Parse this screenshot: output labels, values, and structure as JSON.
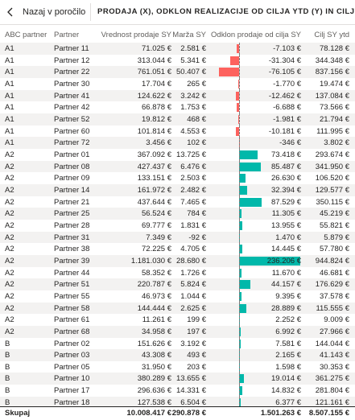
{
  "header": {
    "back": "Nazaj v poročilo",
    "title": "PRODAJA (X), ODKLON REALIZACIJE OD CILJA YTD (Y) IN CILJ PRO"
  },
  "table": {
    "bar_colors": {
      "negative": "#fd625e",
      "positive": "#01b8aa"
    },
    "columns": [
      "ABC partner",
      "Partner",
      "Vrednost prodaje SY",
      "Marža SY",
      "Odklon prodaje od cilja SY",
      "Cilj SY ytd"
    ],
    "rows": [
      [
        "A1",
        "Partner 11",
        "71.025 €",
        "2.581 €",
        {
          "value": -7103,
          "label": "-7.103 €"
        },
        "78.128 €"
      ],
      [
        "A1",
        "Partner 12",
        "313.044 €",
        "5.341 €",
        {
          "value": -31304,
          "label": "-31.304 €"
        },
        "344.348 €"
      ],
      [
        "A1",
        "Partner 22",
        "761.051 €",
        "50.407 €",
        {
          "value": -76105,
          "label": "-76.105 €"
        },
        "837.156 €"
      ],
      [
        "A1",
        "Partner 30",
        "17.704 €",
        "265 €",
        {
          "value": -1770,
          "label": "-1.770 €"
        },
        "19.474 €"
      ],
      [
        "A1",
        "Partner 41",
        "124.622 €",
        "3.242 €",
        {
          "value": -12462,
          "label": "-12.462 €"
        },
        "137.084 €"
      ],
      [
        "A1",
        "Partner 42",
        "66.878 €",
        "1.753 €",
        {
          "value": -6688,
          "label": "-6.688 €"
        },
        "73.566 €"
      ],
      [
        "A1",
        "Partner 52",
        "19.812 €",
        "468 €",
        {
          "value": -1981,
          "label": "-1.981 €"
        },
        "21.794 €"
      ],
      [
        "A1",
        "Partner 60",
        "101.814 €",
        "4.553 €",
        {
          "value": -10181,
          "label": "-10.181 €"
        },
        "111.995 €"
      ],
      [
        "A1",
        "Partner 72",
        "3.456 €",
        "102 €",
        {
          "value": -346,
          "label": "-346 €"
        },
        "3.802 €"
      ],
      [
        "A2",
        "Partner 01",
        "367.092 €",
        "13.725 €",
        {
          "value": 73418,
          "label": "73.418 €"
        },
        "293.674 €"
      ],
      [
        "A2",
        "Partner 08",
        "427.437 €",
        "6.476 €",
        {
          "value": 85487,
          "label": "85.487 €"
        },
        "341.950 €"
      ],
      [
        "A2",
        "Partner 09",
        "133.151 €",
        "2.503 €",
        {
          "value": 26630,
          "label": "26.630 €"
        },
        "106.520 €"
      ],
      [
        "A2",
        "Partner 14",
        "161.972 €",
        "2.482 €",
        {
          "value": 32394,
          "label": "32.394 €"
        },
        "129.577 €"
      ],
      [
        "A2",
        "Partner 21",
        "437.644 €",
        "7.465 €",
        {
          "value": 87529,
          "label": "87.529 €"
        },
        "350.115 €"
      ],
      [
        "A2",
        "Partner 25",
        "56.524 €",
        "784 €",
        {
          "value": 11305,
          "label": "11.305 €"
        },
        "45.219 €"
      ],
      [
        "A2",
        "Partner 28",
        "69.777 €",
        "1.831 €",
        {
          "value": 13955,
          "label": "13.955 €"
        },
        "55.821 €"
      ],
      [
        "A2",
        "Partner 31",
        "7.349 €",
        "-92 €",
        {
          "value": 1470,
          "label": "1.470 €"
        },
        "5.879 €"
      ],
      [
        "A2",
        "Partner 38",
        "72.225 €",
        "4.705 €",
        {
          "value": 14445,
          "label": "14.445 €"
        },
        "57.780 €"
      ],
      [
        "A2",
        "Partner 39",
        "1.181.030 €",
        "28.680 €",
        {
          "value": 236206,
          "label": "236.206 €"
        },
        "944.824 €"
      ],
      [
        "A2",
        "Partner 44",
        "58.352 €",
        "1.726 €",
        {
          "value": 11670,
          "label": "11.670 €"
        },
        "46.681 €"
      ],
      [
        "A2",
        "Partner 51",
        "220.787 €",
        "5.824 €",
        {
          "value": 44157,
          "label": "44.157 €"
        },
        "176.629 €"
      ],
      [
        "A2",
        "Partner 55",
        "46.973 €",
        "1.044 €",
        {
          "value": 9395,
          "label": "9.395 €"
        },
        "37.578 €"
      ],
      [
        "A2",
        "Partner 58",
        "144.444 €",
        "2.625 €",
        {
          "value": 28889,
          "label": "28.889 €"
        },
        "115.555 €"
      ],
      [
        "A2",
        "Partner 61",
        "11.261 €",
        "199 €",
        {
          "value": 2252,
          "label": "2.252 €"
        },
        "9.009 €"
      ],
      [
        "A2",
        "Partner 68",
        "34.958 €",
        "197 €",
        {
          "value": 6992,
          "label": "6.992 €"
        },
        "27.966 €"
      ],
      [
        "B",
        "Partner 02",
        "151.626 €",
        "3.192 €",
        {
          "value": 7581,
          "label": "7.581 €"
        },
        "144.044 €"
      ],
      [
        "B",
        "Partner 03",
        "43.308 €",
        "493 €",
        {
          "value": 2165,
          "label": "2.165 €"
        },
        "41.143 €"
      ],
      [
        "B",
        "Partner 05",
        "31.950 €",
        "203 €",
        {
          "value": 1598,
          "label": "1.598 €"
        },
        "30.353 €"
      ],
      [
        "B",
        "Partner 10",
        "380.289 €",
        "13.655 €",
        {
          "value": 19014,
          "label": "19.014 €"
        },
        "361.275 €"
      ],
      [
        "B",
        "Partner 17",
        "296.636 €",
        "14.331 €",
        {
          "value": 14832,
          "label": "14.832 €"
        },
        "281.804 €"
      ],
      [
        "B",
        "Partner 18",
        "127.538 €",
        "6.504 €",
        {
          "value": 6377,
          "label": "6.377 €"
        },
        "121.161 €"
      ]
    ],
    "total": {
      "label": "Skupaj",
      "values": [
        "10.008.417 €",
        "290.878 €",
        "1.501.263 €",
        "8.507.155 €"
      ]
    }
  }
}
